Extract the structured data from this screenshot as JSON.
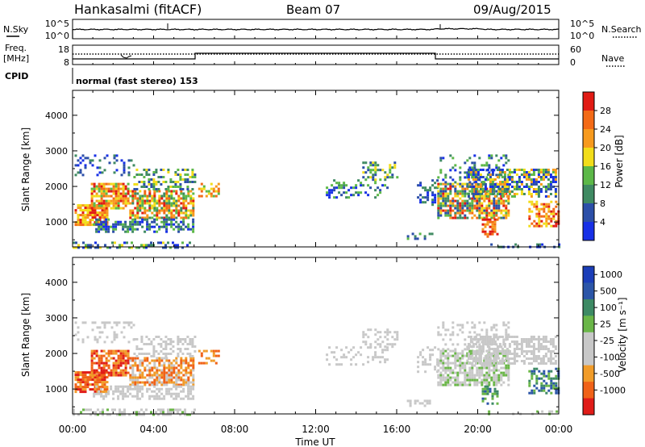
{
  "header": {
    "station": "Hankasalmi (fitACF)",
    "beam": "Beam 07",
    "date": "09/Aug/2015"
  },
  "top_panels": {
    "nsky": {
      "label": "N.Sky",
      "tick_top": "10^5",
      "tick_bot": "10^0"
    },
    "nsearch": {
      "label": "N.Search",
      "tick_top": "10^5",
      "tick_bot": "10^0"
    },
    "freq": {
      "label1": "Freq.",
      "label2": "[MHz]",
      "tick_top": "18",
      "tick_bot": "8"
    },
    "nave": {
      "label": "Nave",
      "tick_top": "60",
      "tick_bot": "0"
    },
    "cpid_label": "CPID",
    "mode_text": "normal (fast stereo) 153"
  },
  "colors": {
    "power": [
      "#1730e6",
      "#2c4fa8",
      "#3f8a62",
      "#5cb848",
      "#f2dd1a",
      "#f79a1e",
      "#f36a16",
      "#e11b14"
    ],
    "velocity": [
      "#e01c18",
      "#f06218",
      "#f19c2a",
      "#c8c8c8",
      "#c8c8c8",
      "#6ab648",
      "#3d8a64",
      "#2c56a8",
      "#1b3eb8"
    ]
  },
  "chart_data": [
    {
      "type": "heatmap",
      "title": "Power",
      "xlabel": "",
      "ylabel": "Slant Range [km]",
      "x_ticks": [
        "00:00",
        "04:00",
        "08:00",
        "12:00",
        "16:00",
        "20:00",
        "00:00"
      ],
      "y_ticks": [
        "1000",
        "2000",
        "3000",
        "4000"
      ],
      "ylim": [
        300,
        4700
      ],
      "colorbar": {
        "label": "Power [dB]",
        "ticks": [
          "4",
          "8",
          "12",
          "16",
          "20",
          "24",
          "28"
        ]
      }
    },
    {
      "type": "heatmap",
      "title": "Velocity",
      "xlabel": "Time UT",
      "ylabel": "Slant Range [km]",
      "x_ticks": [
        "00:00",
        "04:00",
        "08:00",
        "12:00",
        "16:00",
        "20:00",
        "00:00"
      ],
      "y_ticks": [
        "1000",
        "2000",
        "3000",
        "4000"
      ],
      "ylim": [
        300,
        4700
      ],
      "colorbar": {
        "label": "Velocity [m s⁻¹]",
        "ticks": [
          "1000",
          "500",
          "100",
          "25",
          "-25",
          "-100",
          "-500",
          "-1000"
        ]
      }
    }
  ]
}
